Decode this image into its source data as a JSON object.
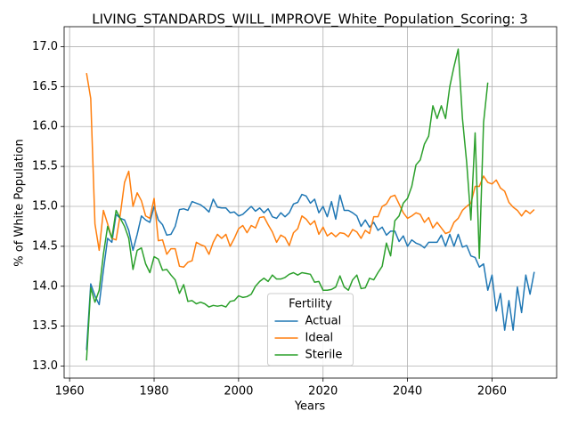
{
  "chart_data": {
    "type": "line",
    "title": "LIVING_STANDARDS_WILL_IMPROVE_White_Population_Scoring: 3",
    "xlabel": "Years",
    "ylabel": "% of White Population",
    "legend_title": "Fertility",
    "legend": "lower center",
    "grid": true,
    "xlim": [
      1958.7,
      2075.3
    ],
    "xticks": [
      1960,
      1980,
      2000,
      2020,
      2040,
      2060
    ],
    "ylim": [
      12.85,
      17.25
    ],
    "yticks": [
      {
        "value": 13,
        "label": "13.0"
      },
      13.5,
      {
        "value": 14,
        "label": "14.0"
      },
      14.5,
      {
        "value": 15,
        "label": "15.0"
      },
      15.5,
      {
        "value": 16,
        "label": "16.0"
      },
      16.5,
      {
        "value": 17,
        "label": "17.0"
      }
    ],
    "x": [
      1964,
      1965,
      1966,
      1967,
      1968,
      1969,
      1970,
      1971,
      1972,
      1973,
      1974,
      1975,
      1976,
      1977,
      1978,
      1979,
      1980,
      1981,
      1982,
      1983,
      1984,
      1985,
      1986,
      1987,
      1988,
      1989,
      1990,
      1991,
      1992,
      1993,
      1994,
      1995,
      1996,
      1997,
      1998,
      1999,
      2000,
      2001,
      2002,
      2003,
      2004,
      2005,
      2006,
      2007,
      2008,
      2009,
      2010,
      2011,
      2012,
      2013,
      2014,
      2015,
      2016,
      2017,
      2018,
      2019,
      2020,
      2021,
      2022,
      2023,
      2024,
      2025,
      2026,
      2027,
      2028,
      2029,
      2030,
      2031,
      2032,
      2033,
      2034,
      2035,
      2036,
      2037,
      2038,
      2039,
      2040,
      2041,
      2042,
      2043,
      2044,
      2045,
      2046,
      2047,
      2048,
      2049,
      2050,
      2051,
      2052,
      2053,
      2054,
      2055,
      2056,
      2057,
      2058,
      2059,
      2060,
      2061,
      2062,
      2063,
      2064,
      2065,
      2066,
      2067,
      2068,
      2069,
      2070
    ],
    "series": [
      {
        "name": "Actual",
        "color": "#1f77b4",
        "values": [
          13.2,
          14.03,
          13.88,
          13.77,
          14.2,
          14.6,
          14.55,
          14.9,
          14.85,
          14.83,
          14.7,
          14.45,
          14.65,
          14.88,
          14.83,
          14.8,
          15.0,
          14.83,
          14.77,
          14.64,
          14.65,
          14.75,
          14.96,
          14.97,
          14.95,
          15.06,
          15.04,
          15.02,
          14.98,
          14.93,
          15.09,
          14.99,
          14.98,
          14.98,
          14.92,
          14.93,
          14.88,
          14.9,
          14.95,
          15.0,
          14.94,
          14.98,
          14.92,
          14.97,
          14.87,
          14.85,
          14.92,
          14.87,
          14.92,
          15.03,
          15.05,
          15.15,
          15.13,
          15.04,
          15.09,
          14.92,
          15.0,
          14.87,
          15.06,
          14.84,
          15.14,
          14.95,
          14.95,
          14.92,
          14.88,
          14.75,
          14.83,
          14.74,
          14.8,
          14.7,
          14.74,
          14.64,
          14.69,
          14.69,
          14.56,
          14.63,
          14.5,
          14.58,
          14.54,
          14.52,
          14.48,
          14.55,
          14.55,
          14.55,
          14.64,
          14.5,
          14.65,
          14.5,
          14.65,
          14.49,
          14.51,
          14.38,
          14.36,
          14.24,
          14.28,
          13.95,
          14.14,
          13.69,
          13.91,
          13.45,
          13.82,
          13.45,
          13.99,
          13.67,
          14.14,
          13.9,
          14.18
        ]
      },
      {
        "name": "Ideal",
        "color": "#ff7f0e",
        "values": [
          16.67,
          16.35,
          14.78,
          14.45,
          14.95,
          14.78,
          14.6,
          14.58,
          14.9,
          15.3,
          15.44,
          15.0,
          15.17,
          15.07,
          14.88,
          14.85,
          15.1,
          14.57,
          14.58,
          14.4,
          14.47,
          14.47,
          14.25,
          14.24,
          14.3,
          14.32,
          14.55,
          14.52,
          14.5,
          14.4,
          14.55,
          14.65,
          14.6,
          14.65,
          14.5,
          14.6,
          14.72,
          14.76,
          14.67,
          14.76,
          14.73,
          14.86,
          14.87,
          14.77,
          14.68,
          14.55,
          14.64,
          14.61,
          14.51,
          14.67,
          14.72,
          14.88,
          14.84,
          14.77,
          14.82,
          14.65,
          14.74,
          14.63,
          14.67,
          14.62,
          14.67,
          14.66,
          14.62,
          14.71,
          14.68,
          14.6,
          14.7,
          14.66,
          14.87,
          14.87,
          15.0,
          15.03,
          15.12,
          15.14,
          15.03,
          14.92,
          14.85,
          14.88,
          14.92,
          14.9,
          14.8,
          14.86,
          14.73,
          14.8,
          14.73,
          14.66,
          14.68,
          14.8,
          14.85,
          14.95,
          15.0,
          15.04,
          15.25,
          15.25,
          15.38,
          15.3,
          15.28,
          15.33,
          15.23,
          15.19,
          15.05,
          14.99,
          14.95,
          14.88,
          14.95,
          14.91,
          14.96
        ]
      },
      {
        "name": "Sterile",
        "color": "#2ca02c",
        "values": [
          13.07,
          13.98,
          13.8,
          13.95,
          14.4,
          14.75,
          14.6,
          14.95,
          14.85,
          14.75,
          14.6,
          14.21,
          14.45,
          14.48,
          14.28,
          14.17,
          14.37,
          14.34,
          14.2,
          14.21,
          14.14,
          14.08,
          13.91,
          14.02,
          13.81,
          13.82,
          13.78,
          13.8,
          13.78,
          13.74,
          13.76,
          13.75,
          13.76,
          13.74,
          13.81,
          13.82,
          13.88,
          13.86,
          13.87,
          13.9,
          14.0,
          14.06,
          14.1,
          14.06,
          14.14,
          14.09,
          14.09,
          14.11,
          14.15,
          14.17,
          14.14,
          14.17,
          14.16,
          14.15,
          14.05,
          14.06,
          13.95,
          13.95,
          13.96,
          13.99,
          14.13,
          13.99,
          13.95,
          14.08,
          14.14,
          13.97,
          13.98,
          14.1,
          14.08,
          14.17,
          14.25,
          14.54,
          14.38,
          14.82,
          14.88,
          15.04,
          15.1,
          15.25,
          15.52,
          15.58,
          15.78,
          15.88,
          16.26,
          16.1,
          16.26,
          16.1,
          16.5,
          16.75,
          16.97,
          16.1,
          15.55,
          14.83,
          15.92,
          14.35,
          16.05,
          16.55,
          null,
          null,
          null,
          null,
          null,
          null,
          null,
          null,
          null,
          null,
          null
        ]
      }
    ]
  }
}
